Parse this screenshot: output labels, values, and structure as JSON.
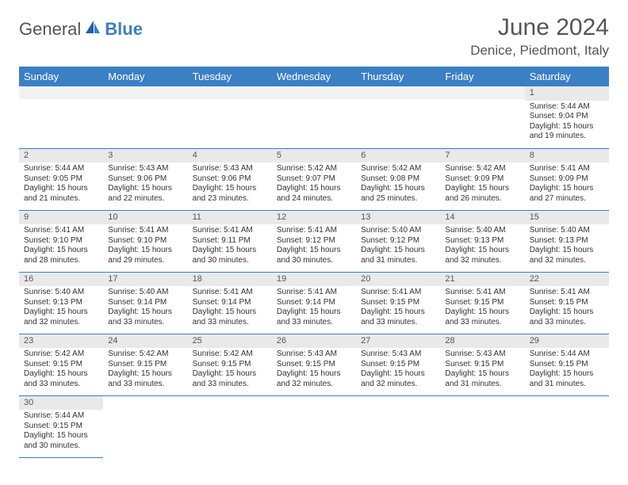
{
  "brand": {
    "part1": "General",
    "part2": "Blue"
  },
  "title": "June 2024",
  "location": "Denice, Piedmont, Italy",
  "colors": {
    "header_bg": "#3b7fc4",
    "header_text": "#ffffff",
    "daynum_bg": "#e9e9e9",
    "text": "#333333",
    "blank_bg": "#f2f2f2"
  },
  "weekdays": [
    "Sunday",
    "Monday",
    "Tuesday",
    "Wednesday",
    "Thursday",
    "Friday",
    "Saturday"
  ],
  "weeks": [
    [
      null,
      null,
      null,
      null,
      null,
      null,
      {
        "n": "1",
        "sr": "Sunrise: 5:44 AM",
        "ss": "Sunset: 9:04 PM",
        "d1": "Daylight: 15 hours",
        "d2": "and 19 minutes."
      }
    ],
    [
      {
        "n": "2",
        "sr": "Sunrise: 5:44 AM",
        "ss": "Sunset: 9:05 PM",
        "d1": "Daylight: 15 hours",
        "d2": "and 21 minutes."
      },
      {
        "n": "3",
        "sr": "Sunrise: 5:43 AM",
        "ss": "Sunset: 9:06 PM",
        "d1": "Daylight: 15 hours",
        "d2": "and 22 minutes."
      },
      {
        "n": "4",
        "sr": "Sunrise: 5:43 AM",
        "ss": "Sunset: 9:06 PM",
        "d1": "Daylight: 15 hours",
        "d2": "and 23 minutes."
      },
      {
        "n": "5",
        "sr": "Sunrise: 5:42 AM",
        "ss": "Sunset: 9:07 PM",
        "d1": "Daylight: 15 hours",
        "d2": "and 24 minutes."
      },
      {
        "n": "6",
        "sr": "Sunrise: 5:42 AM",
        "ss": "Sunset: 9:08 PM",
        "d1": "Daylight: 15 hours",
        "d2": "and 25 minutes."
      },
      {
        "n": "7",
        "sr": "Sunrise: 5:42 AM",
        "ss": "Sunset: 9:09 PM",
        "d1": "Daylight: 15 hours",
        "d2": "and 26 minutes."
      },
      {
        "n": "8",
        "sr": "Sunrise: 5:41 AM",
        "ss": "Sunset: 9:09 PM",
        "d1": "Daylight: 15 hours",
        "d2": "and 27 minutes."
      }
    ],
    [
      {
        "n": "9",
        "sr": "Sunrise: 5:41 AM",
        "ss": "Sunset: 9:10 PM",
        "d1": "Daylight: 15 hours",
        "d2": "and 28 minutes."
      },
      {
        "n": "10",
        "sr": "Sunrise: 5:41 AM",
        "ss": "Sunset: 9:10 PM",
        "d1": "Daylight: 15 hours",
        "d2": "and 29 minutes."
      },
      {
        "n": "11",
        "sr": "Sunrise: 5:41 AM",
        "ss": "Sunset: 9:11 PM",
        "d1": "Daylight: 15 hours",
        "d2": "and 30 minutes."
      },
      {
        "n": "12",
        "sr": "Sunrise: 5:41 AM",
        "ss": "Sunset: 9:12 PM",
        "d1": "Daylight: 15 hours",
        "d2": "and 30 minutes."
      },
      {
        "n": "13",
        "sr": "Sunrise: 5:40 AM",
        "ss": "Sunset: 9:12 PM",
        "d1": "Daylight: 15 hours",
        "d2": "and 31 minutes."
      },
      {
        "n": "14",
        "sr": "Sunrise: 5:40 AM",
        "ss": "Sunset: 9:13 PM",
        "d1": "Daylight: 15 hours",
        "d2": "and 32 minutes."
      },
      {
        "n": "15",
        "sr": "Sunrise: 5:40 AM",
        "ss": "Sunset: 9:13 PM",
        "d1": "Daylight: 15 hours",
        "d2": "and 32 minutes."
      }
    ],
    [
      {
        "n": "16",
        "sr": "Sunrise: 5:40 AM",
        "ss": "Sunset: 9:13 PM",
        "d1": "Daylight: 15 hours",
        "d2": "and 32 minutes."
      },
      {
        "n": "17",
        "sr": "Sunrise: 5:40 AM",
        "ss": "Sunset: 9:14 PM",
        "d1": "Daylight: 15 hours",
        "d2": "and 33 minutes."
      },
      {
        "n": "18",
        "sr": "Sunrise: 5:41 AM",
        "ss": "Sunset: 9:14 PM",
        "d1": "Daylight: 15 hours",
        "d2": "and 33 minutes."
      },
      {
        "n": "19",
        "sr": "Sunrise: 5:41 AM",
        "ss": "Sunset: 9:14 PM",
        "d1": "Daylight: 15 hours",
        "d2": "and 33 minutes."
      },
      {
        "n": "20",
        "sr": "Sunrise: 5:41 AM",
        "ss": "Sunset: 9:15 PM",
        "d1": "Daylight: 15 hours",
        "d2": "and 33 minutes."
      },
      {
        "n": "21",
        "sr": "Sunrise: 5:41 AM",
        "ss": "Sunset: 9:15 PM",
        "d1": "Daylight: 15 hours",
        "d2": "and 33 minutes."
      },
      {
        "n": "22",
        "sr": "Sunrise: 5:41 AM",
        "ss": "Sunset: 9:15 PM",
        "d1": "Daylight: 15 hours",
        "d2": "and 33 minutes."
      }
    ],
    [
      {
        "n": "23",
        "sr": "Sunrise: 5:42 AM",
        "ss": "Sunset: 9:15 PM",
        "d1": "Daylight: 15 hours",
        "d2": "and 33 minutes."
      },
      {
        "n": "24",
        "sr": "Sunrise: 5:42 AM",
        "ss": "Sunset: 9:15 PM",
        "d1": "Daylight: 15 hours",
        "d2": "and 33 minutes."
      },
      {
        "n": "25",
        "sr": "Sunrise: 5:42 AM",
        "ss": "Sunset: 9:15 PM",
        "d1": "Daylight: 15 hours",
        "d2": "and 33 minutes."
      },
      {
        "n": "26",
        "sr": "Sunrise: 5:43 AM",
        "ss": "Sunset: 9:15 PM",
        "d1": "Daylight: 15 hours",
        "d2": "and 32 minutes."
      },
      {
        "n": "27",
        "sr": "Sunrise: 5:43 AM",
        "ss": "Sunset: 9:15 PM",
        "d1": "Daylight: 15 hours",
        "d2": "and 32 minutes."
      },
      {
        "n": "28",
        "sr": "Sunrise: 5:43 AM",
        "ss": "Sunset: 9:15 PM",
        "d1": "Daylight: 15 hours",
        "d2": "and 31 minutes."
      },
      {
        "n": "29",
        "sr": "Sunrise: 5:44 AM",
        "ss": "Sunset: 9:15 PM",
        "d1": "Daylight: 15 hours",
        "d2": "and 31 minutes."
      }
    ],
    [
      {
        "n": "30",
        "sr": "Sunrise: 5:44 AM",
        "ss": "Sunset: 9:15 PM",
        "d1": "Daylight: 15 hours",
        "d2": "and 30 minutes."
      },
      null,
      null,
      null,
      null,
      null,
      null
    ]
  ]
}
